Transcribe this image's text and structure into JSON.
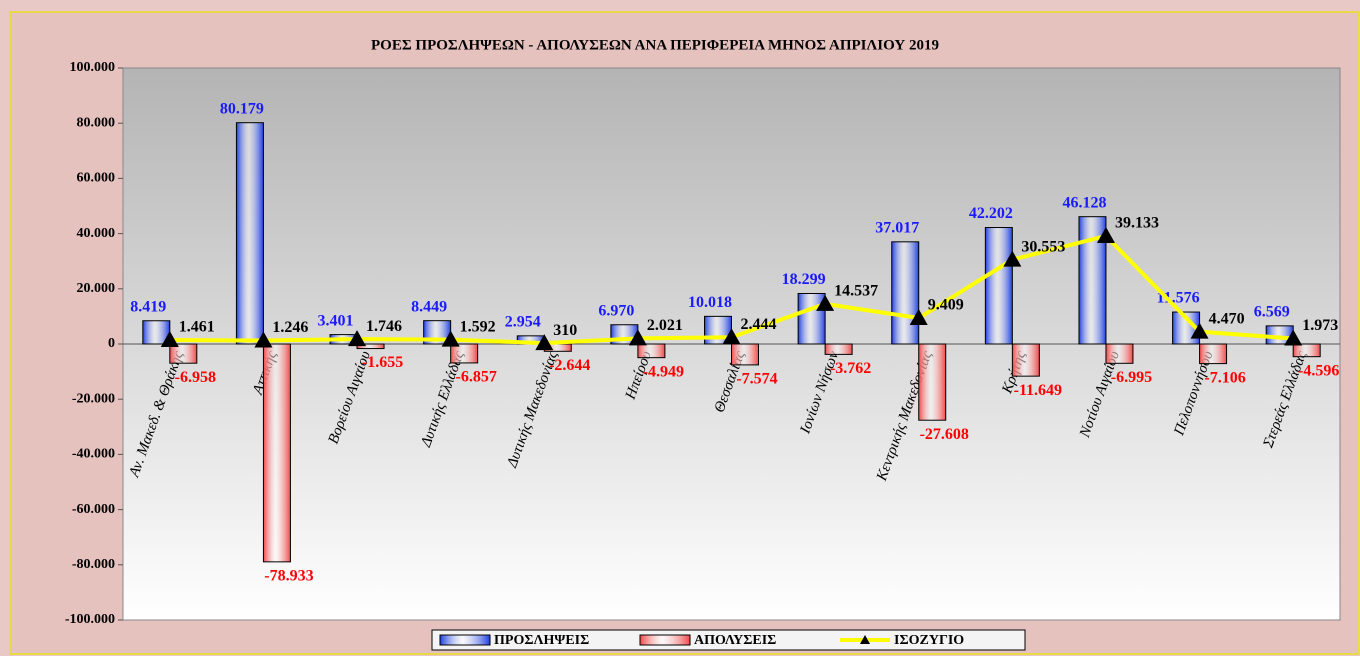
{
  "chart_data": {
    "type": "bar",
    "title": "ΡΟΕΣ ΠΡΟΣΛΗΨΕΩΝ - ΑΠΟΛΥΣΕΩΝ ΑΝΑ ΠΕΡΙΦΕΡΕΙΑ ΜΗΝΟΣ  ΑΠΡΙΛΙΟΥ  2019",
    "categories": [
      "Αν. Μακεδ. & Θράκης",
      "Αττικής",
      "Βορείου Αιγαίου",
      "Δυτικής Ελλάδας",
      "Δυτικής Μακεδονίας",
      "Ηπείρου",
      "Θεσσαλίας",
      "Ιονίων Νήσων",
      "Κεντρικής Μακεδονίας",
      "Κρήτης",
      "Νοτίου Αιγαίου",
      "Πελοποννήσου",
      "Στερεάς Ελλάδας"
    ],
    "series": [
      {
        "name": "ΠΡΟΣΛΗΨΕΙΣ",
        "type": "bar",
        "color": "#1f3fe0",
        "label_color": "#1a1aff",
        "values": [
          8419,
          80179,
          3401,
          8449,
          2954,
          6970,
          10018,
          18299,
          37017,
          42202,
          46128,
          11576,
          6569
        ],
        "value_labels": [
          "8.419",
          "80.179",
          "3.401",
          "8.449",
          "2.954",
          "6.970",
          "10.018",
          "18.299",
          "37.017",
          "42.202",
          "46.128",
          "11.576",
          "6.569"
        ]
      },
      {
        "name": "ΑΠΟΛΥΣΕΙΣ",
        "type": "bar",
        "color": "#f04848",
        "label_color": "#ff0000",
        "values": [
          -6958,
          -78933,
          -1655,
          -6857,
          -2644,
          -4949,
          -7574,
          -3762,
          -27608,
          -11649,
          -6995,
          -7106,
          -4596
        ],
        "value_labels": [
          "-6.958",
          "-78.933",
          "-1.655",
          "-6.857",
          "-2.644",
          "-4.949",
          "-7.574",
          "-3.762",
          "-27.608",
          "-11.649",
          "-6.995",
          "-7.106",
          "-4.596"
        ]
      },
      {
        "name": "ΙΣΟΖΥΓΙΟ",
        "type": "line",
        "color": "#ffff00",
        "label_color": "#000000",
        "values": [
          1461,
          1246,
          1746,
          1592,
          310,
          2021,
          2444,
          14537,
          9409,
          30553,
          39133,
          4470,
          1973
        ],
        "value_labels": [
          "1.461",
          "1.246",
          "1.746",
          "1.592",
          "310",
          "2.021",
          "2.444",
          "14.537",
          "9.409",
          "30.553",
          "39.133",
          "4.470",
          "1.973"
        ]
      }
    ],
    "ylim": [
      -100000,
      100000
    ],
    "yticks": [
      {
        "value": -100000,
        "label": "-100.000"
      },
      {
        "value": -80000,
        "label": "-80.000"
      },
      {
        "value": -60000,
        "label": "-60.000"
      },
      {
        "value": -40000,
        "label": "-40.000"
      },
      {
        "value": -20000,
        "label": "-20.000"
      },
      0,
      {
        "value": 20000,
        "label": "20.000"
      },
      {
        "value": 40000,
        "label": "40.000"
      },
      {
        "value": 60000,
        "label": "60.000"
      },
      {
        "value": 80000,
        "label": "80.000"
      },
      {
        "value": 100000,
        "label": "100.000"
      }
    ],
    "legend": "bottom"
  }
}
